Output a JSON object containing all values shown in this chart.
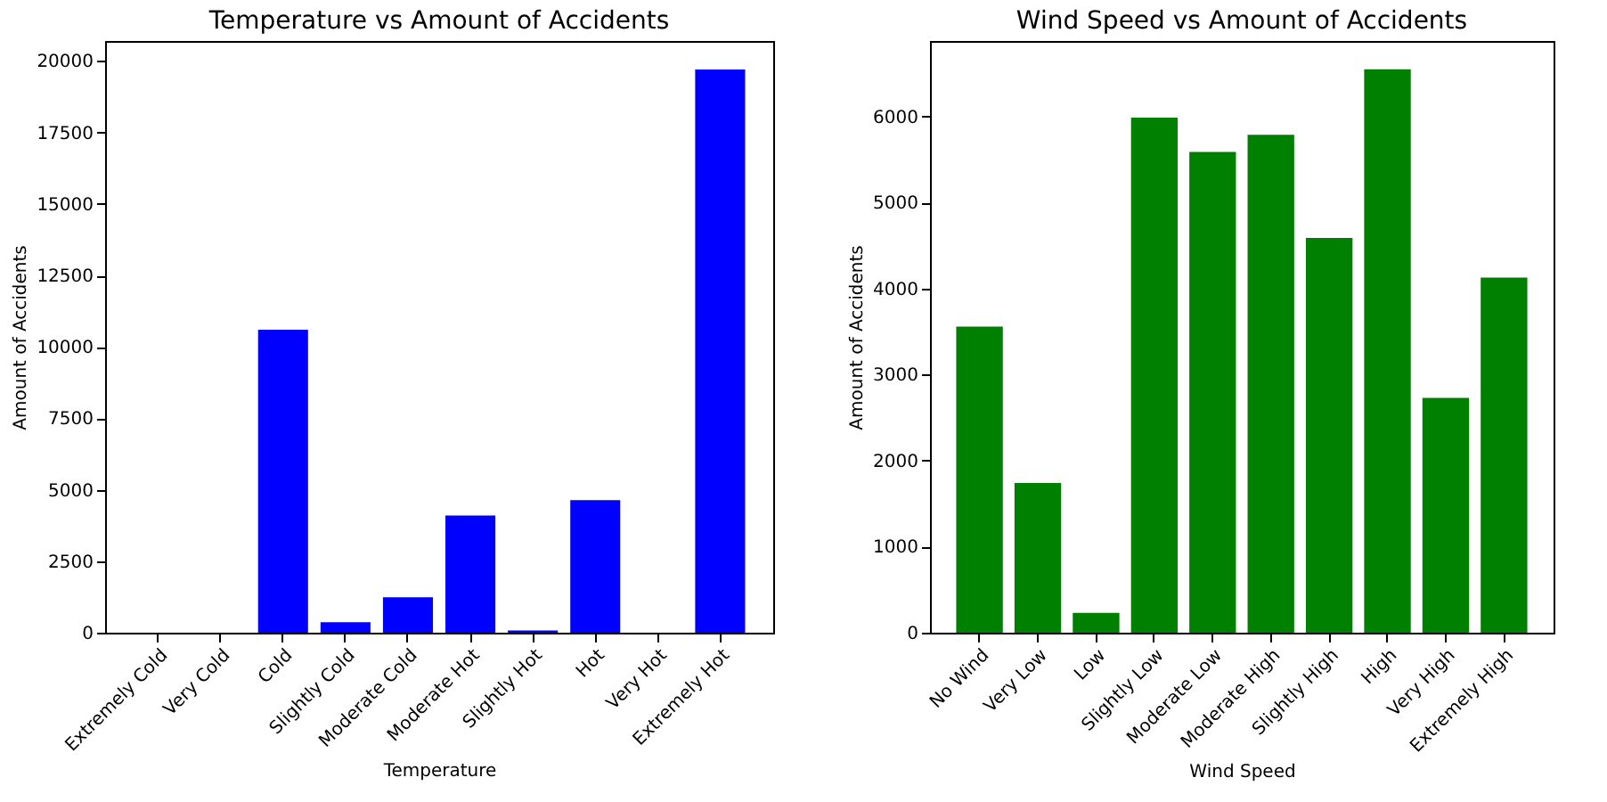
{
  "chart_data": [
    {
      "type": "bar",
      "title": "Temperature vs Amount of Accidents",
      "xlabel": "Temperature",
      "ylabel": "Amount of Accidents",
      "categories": [
        "Extremely Cold",
        "Very Cold",
        "Cold",
        "Slightly Cold",
        "Moderate Cold",
        "Moderate Hot",
        "Slightly Hot",
        "Hot",
        "Very Hot",
        "Extremely Hot"
      ],
      "values": [
        0,
        0,
        10600,
        370,
        1240,
        4100,
        80,
        4640,
        0,
        19700
      ],
      "color": "#0000ff",
      "ylim": [
        0,
        20700
      ],
      "yticks": [
        0,
        2500,
        5000,
        7500,
        10000,
        12500,
        15000,
        17500,
        20000
      ]
    },
    {
      "type": "bar",
      "title": "Wind Speed vs Amount of Accidents",
      "xlabel": "Wind Speed",
      "ylabel": "Amount of Accidents",
      "categories": [
        "No Wind",
        "Very Low",
        "Low",
        "Slightly Low",
        "Moderate Low",
        "Moderate High",
        "Slightly High",
        "High",
        "Very High",
        "Extremely High"
      ],
      "values": [
        3560,
        1740,
        230,
        5990,
        5590,
        5790,
        4590,
        6550,
        2730,
        4130
      ],
      "color": "#008000",
      "ylim": [
        0,
        6880
      ],
      "yticks": [
        0,
        1000,
        2000,
        3000,
        4000,
        5000,
        6000
      ]
    }
  ]
}
